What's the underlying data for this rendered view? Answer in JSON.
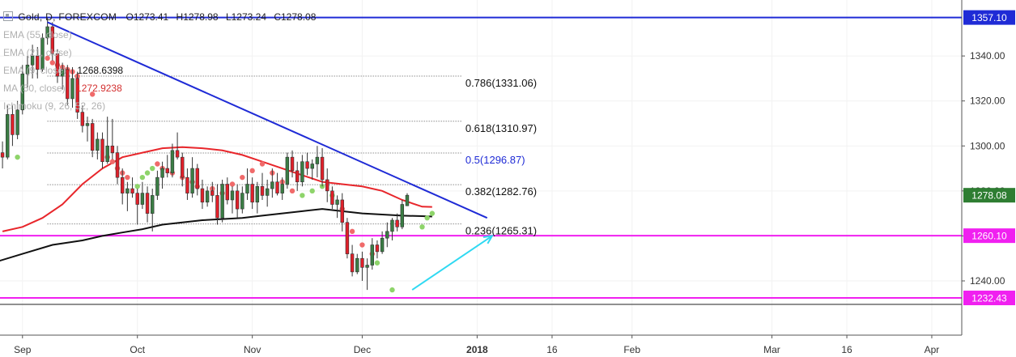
{
  "instrument": {
    "title": "Gold, D, FOREXCOM",
    "open": "O1273.41",
    "high": "H1278.98",
    "low": "L1273.24",
    "close": "C1278.08"
  },
  "indicators": [
    {
      "label": "EMA (55, close)",
      "value": ""
    },
    {
      "label": "EMA (21, close)",
      "value": ""
    },
    {
      "label": "EMA (9, close)",
      "value": "1268.6398"
    },
    {
      "label": "MA (50, close)",
      "value": "1272.9238"
    },
    {
      "label": "Ichimoku (9, 26, 52, 26)",
      "value": ""
    }
  ],
  "colors": {
    "up": "#3a7d44",
    "down": "#e0202a",
    "ma50": "#e8262b",
    "ma200": "#111111",
    "trendline": "#1f2bd6",
    "resistance": "#1f2bd6",
    "support": "#f020f0",
    "projection": "#2fd9f2",
    "fib_line": "#555555",
    "psar_red": "#f06a6a",
    "psar_green": "#8ed46a",
    "price_badge": "#2e7d32",
    "support_badge": "#f020f0",
    "resistance_badge": "#1f2bd6"
  },
  "chart_data": {
    "type": "candlestick",
    "y_axis": {
      "min": 1222,
      "max": 1362,
      "ticks": [
        1340.0,
        1320.0,
        1300.0,
        1280.0,
        1260.0,
        1240.0
      ]
    },
    "y_tick_labels": [
      "1340.00",
      "1320.00",
      "1300.00",
      "1280.00",
      "1260.00",
      "1240.00"
    ],
    "x_ticks": [
      {
        "label": "Sep",
        "index": 4
      },
      {
        "label": "Oct",
        "index": 27
      },
      {
        "label": "Nov",
        "index": 50
      },
      {
        "label": "Dec",
        "index": 72
      },
      {
        "label": "2018",
        "index": 95
      },
      {
        "label": "16",
        "index": 110
      },
      {
        "label": "Feb",
        "index": 126
      },
      {
        "label": "Mar",
        "index": 154
      },
      {
        "label": "16",
        "index": 169
      },
      {
        "label": "Apr",
        "index": 186
      }
    ],
    "x_range": [
      -0.5,
      192
    ],
    "last_price": "1278.08",
    "horizontal_levels": [
      {
        "name": "resistance",
        "value": 1357.1,
        "label": "1357.10"
      },
      {
        "name": "support-1",
        "value": 1260.1,
        "label": "1260.10"
      },
      {
        "name": "support-2",
        "value": 1232.43,
        "label": "1232.43"
      }
    ],
    "fibonacci": [
      {
        "ratio": "0.786",
        "value": 1331.06,
        "label": "0.786(1331.06)"
      },
      {
        "ratio": "0.618",
        "value": 1310.97,
        "label": "0.618(1310.97)"
      },
      {
        "ratio": "0.5",
        "value": 1296.87,
        "label": "0.5(1296.87)"
      },
      {
        "ratio": "0.382",
        "value": 1282.76,
        "label": "0.382(1282.76)"
      },
      {
        "ratio": "0.236",
        "value": 1265.31,
        "label": "0.236(1265.31)"
      }
    ],
    "fib_range": {
      "x_start": 9,
      "x_end": 92
    },
    "trendline": {
      "x1": 9,
      "y1": 1355,
      "x2": 97,
      "y2": 1268
    },
    "projection_arrow": {
      "x1": 82,
      "y1": 1236,
      "x2": 98,
      "y2": 1260
    },
    "candles": [
      [
        1297,
        1302,
        1290,
        1295
      ],
      [
        1295,
        1318,
        1294,
        1314
      ],
      [
        1314,
        1318,
        1300,
        1305
      ],
      [
        1305,
        1320,
        1303,
        1316
      ],
      [
        1316,
        1336,
        1314,
        1332
      ],
      [
        1332,
        1340,
        1326,
        1336
      ],
      [
        1336,
        1345,
        1330,
        1340
      ],
      [
        1340,
        1344,
        1330,
        1334
      ],
      [
        1334,
        1350,
        1333,
        1348
      ],
      [
        1348,
        1357,
        1345,
        1353
      ],
      [
        1353,
        1355,
        1338,
        1341
      ],
      [
        1341,
        1343,
        1328,
        1331
      ],
      [
        1331,
        1337,
        1325,
        1334
      ],
      [
        1334,
        1336,
        1318,
        1321
      ],
      [
        1321,
        1335,
        1317,
        1330
      ],
      [
        1330,
        1333,
        1312,
        1315
      ],
      [
        1315,
        1318,
        1306,
        1309
      ],
      [
        1309,
        1313,
        1302,
        1310
      ],
      [
        1310,
        1312,
        1295,
        1298
      ],
      [
        1298,
        1306,
        1294,
        1303
      ],
      [
        1303,
        1306,
        1290,
        1293
      ],
      [
        1293,
        1313,
        1292,
        1300
      ],
      [
        1300,
        1312,
        1294,
        1297
      ],
      [
        1297,
        1300,
        1283,
        1286
      ],
      [
        1286,
        1290,
        1274,
        1279
      ],
      [
        1279,
        1284,
        1271,
        1281
      ],
      [
        1281,
        1286,
        1277,
        1279
      ],
      [
        1279,
        1281,
        1265,
        1274
      ],
      [
        1274,
        1284,
        1272,
        1279
      ],
      [
        1279,
        1282,
        1266,
        1270
      ],
      [
        1270,
        1281,
        1262,
        1278
      ],
      [
        1278,
        1289,
        1276,
        1286
      ],
      [
        1286,
        1293,
        1281,
        1290
      ],
      [
        1290,
        1296,
        1286,
        1288
      ],
      [
        1288,
        1301,
        1286,
        1298
      ],
      [
        1298,
        1306,
        1294,
        1295
      ],
      [
        1295,
        1297,
        1282,
        1286
      ],
      [
        1286,
        1290,
        1276,
        1279
      ],
      [
        1279,
        1295,
        1277,
        1290
      ],
      [
        1290,
        1292,
        1278,
        1281
      ],
      [
        1281,
        1285,
        1272,
        1275
      ],
      [
        1275,
        1282,
        1273,
        1280
      ],
      [
        1280,
        1284,
        1275,
        1278
      ],
      [
        1278,
        1283,
        1265,
        1268
      ],
      [
        1268,
        1285,
        1266,
        1283
      ],
      [
        1283,
        1286,
        1274,
        1276
      ],
      [
        1276,
        1282,
        1270,
        1280
      ],
      [
        1280,
        1283,
        1268,
        1272
      ],
      [
        1272,
        1282,
        1270,
        1279
      ],
      [
        1279,
        1290,
        1276,
        1283
      ],
      [
        1283,
        1286,
        1272,
        1275
      ],
      [
        1275,
        1284,
        1270,
        1282
      ],
      [
        1282,
        1288,
        1276,
        1278
      ],
      [
        1278,
        1285,
        1273,
        1281
      ],
      [
        1281,
        1290,
        1277,
        1284
      ],
      [
        1284,
        1288,
        1278,
        1279
      ],
      [
        1279,
        1286,
        1276,
        1283
      ],
      [
        1283,
        1297,
        1281,
        1295
      ],
      [
        1295,
        1298,
        1286,
        1289
      ],
      [
        1289,
        1293,
        1280,
        1284
      ],
      [
        1284,
        1296,
        1282,
        1293
      ],
      [
        1293,
        1297,
        1287,
        1290
      ],
      [
        1290,
        1294,
        1285,
        1292
      ],
      [
        1292,
        1300,
        1286,
        1295
      ],
      [
        1295,
        1299,
        1282,
        1285
      ],
      [
        1285,
        1290,
        1275,
        1280
      ],
      [
        1280,
        1282,
        1272,
        1274
      ],
      [
        1274,
        1278,
        1268,
        1276
      ],
      [
        1276,
        1279,
        1262,
        1266
      ],
      [
        1266,
        1268,
        1250,
        1252
      ],
      [
        1252,
        1256,
        1242,
        1244
      ],
      [
        1244,
        1252,
        1243,
        1250
      ],
      [
        1250,
        1253,
        1240,
        1246
      ],
      [
        1246,
        1250,
        1236,
        1247
      ],
      [
        1247,
        1259,
        1245,
        1256
      ],
      [
        1256,
        1258,
        1250,
        1253
      ],
      [
        1253,
        1262,
        1252,
        1259
      ],
      [
        1259,
        1266,
        1255,
        1262
      ],
      [
        1262,
        1268,
        1258,
        1267
      ],
      [
        1267,
        1270,
        1262,
        1264
      ],
      [
        1264,
        1276,
        1263,
        1274
      ],
      [
        1273.41,
        1278.98,
        1273.24,
        1278.08
      ]
    ],
    "ma50": [
      [
        0,
        1262
      ],
      [
        4,
        1264
      ],
      [
        8,
        1268
      ],
      [
        12,
        1274
      ],
      [
        16,
        1283
      ],
      [
        20,
        1290
      ],
      [
        24,
        1295
      ],
      [
        28,
        1297
      ],
      [
        32,
        1299
      ],
      [
        36,
        1299.5
      ],
      [
        40,
        1299
      ],
      [
        44,
        1298
      ],
      [
        48,
        1296
      ],
      [
        52,
        1293
      ],
      [
        56,
        1290
      ],
      [
        60,
        1287
      ],
      [
        64,
        1284
      ],
      [
        68,
        1283
      ],
      [
        72,
        1282
      ],
      [
        76,
        1280
      ],
      [
        80,
        1276
      ],
      [
        84,
        1273
      ],
      [
        86,
        1272.9
      ]
    ],
    "ma200": [
      [
        -2,
        1248
      ],
      [
        4,
        1252
      ],
      [
        10,
        1256
      ],
      [
        16,
        1258
      ],
      [
        20,
        1260
      ],
      [
        24,
        1261.5
      ],
      [
        28,
        1263
      ],
      [
        32,
        1265
      ],
      [
        36,
        1266
      ],
      [
        40,
        1267
      ],
      [
        44,
        1267.5
      ],
      [
        48,
        1268
      ],
      [
        52,
        1269
      ],
      [
        56,
        1270
      ],
      [
        60,
        1271
      ],
      [
        64,
        1272
      ],
      [
        68,
        1271
      ],
      [
        72,
        1270
      ],
      [
        76,
        1269.5
      ],
      [
        80,
        1269
      ],
      [
        84,
        1268.8
      ],
      [
        86,
        1268.6
      ]
    ],
    "psar": [
      [
        3,
        1295,
        "green"
      ],
      [
        9,
        1339,
        "red"
      ],
      [
        10,
        1337,
        "red"
      ],
      [
        11,
        1336,
        "red"
      ],
      [
        12,
        1335,
        "red"
      ],
      [
        13,
        1334,
        "red"
      ],
      [
        14,
        1333,
        "red"
      ],
      [
        15,
        1331,
        "red"
      ],
      [
        18,
        1323,
        "red"
      ],
      [
        21,
        1295,
        "red"
      ],
      [
        22,
        1293,
        "red"
      ],
      [
        23,
        1290,
        "red"
      ],
      [
        24,
        1288,
        "red"
      ],
      [
        25,
        1286,
        "red"
      ],
      [
        27,
        1282,
        "green"
      ],
      [
        28,
        1286,
        "green"
      ],
      [
        29,
        1288,
        "green"
      ],
      [
        30,
        1290,
        "green"
      ],
      [
        31,
        1292,
        "red"
      ],
      [
        32,
        1290,
        "red"
      ],
      [
        34,
        1288,
        "red"
      ],
      [
        36,
        1286,
        "red"
      ],
      [
        38,
        1284,
        "red"
      ],
      [
        39,
        1282,
        "red"
      ],
      [
        42,
        1281,
        "red"
      ],
      [
        44,
        1279,
        "red"
      ],
      [
        46,
        1283,
        "red"
      ],
      [
        48,
        1286,
        "red"
      ],
      [
        50,
        1289,
        "red"
      ],
      [
        52,
        1292,
        "red"
      ],
      [
        54,
        1288,
        "red"
      ],
      [
        56,
        1284,
        "red"
      ],
      [
        58,
        1280,
        "red"
      ],
      [
        60,
        1278,
        "green"
      ],
      [
        62,
        1280,
        "green"
      ],
      [
        64,
        1282,
        "green"
      ],
      [
        66,
        1278,
        "green"
      ],
      [
        68,
        1272,
        "red"
      ],
      [
        70,
        1262,
        "red"
      ],
      [
        72,
        1256,
        "red"
      ],
      [
        74,
        1252,
        "red"
      ],
      [
        75,
        1248,
        "green"
      ],
      [
        78,
        1236,
        "green"
      ],
      [
        84,
        1264,
        "green"
      ],
      [
        85,
        1268,
        "green"
      ],
      [
        86,
        1270,
        "green"
      ]
    ]
  }
}
